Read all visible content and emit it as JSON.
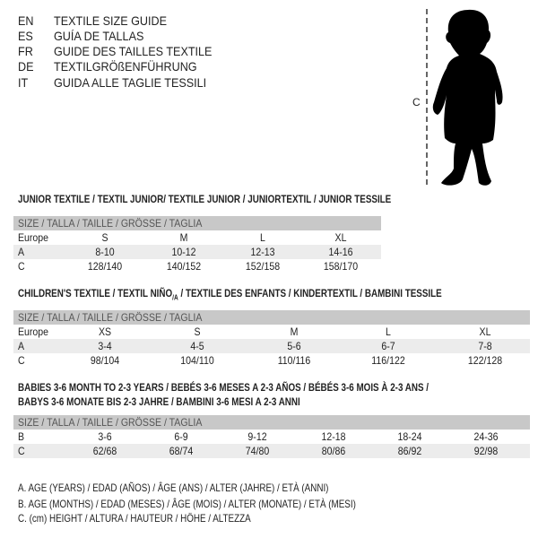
{
  "header": [
    {
      "code": "EN",
      "text": "TEXTILE SIZE GUIDE"
    },
    {
      "code": "ES",
      "text": "GUÍA DE TALLAS"
    },
    {
      "code": "FR",
      "text": "GUIDE DES TAILLES TEXTILE"
    },
    {
      "code": "DE",
      "text": "TEXTILGRÖßENFÜHRUNG"
    },
    {
      "code": "IT",
      "text": "GUIDA ALLE TAGLIE TESSILI"
    }
  ],
  "figure": {
    "measure_label": "C",
    "icon": "child-silhouette"
  },
  "junior": {
    "title": "JUNIOR TEXTILE / TEXTIL JUNIOR/ TEXTILE JUNIOR / JUNIORTEXTIL / JUNIOR TESSILE",
    "size_header": "SIZE / TALLA / TAILLE / GRÖSSE / TAGLIA",
    "rows": [
      {
        "label": "Europe",
        "values": [
          "S",
          "M",
          "L",
          "XL"
        ]
      },
      {
        "label": "A",
        "values": [
          "8-10",
          "10-12",
          "12-13",
          "14-16"
        ]
      },
      {
        "label": "C",
        "values": [
          "128/140",
          "140/152",
          "152/158",
          "158/170"
        ]
      }
    ]
  },
  "children": {
    "title_pre": "CHILDREN'S TEXTILE / TEXTIL NIÑO",
    "title_sub": "/A",
    "title_post": " / TEXTILE DES ENFANTS / KINDERTEXTIL / BAMBINI TESSILE",
    "size_header": "SIZE / TALLA / TAILLE / GRÖSSE / TAGLIA",
    "rows": [
      {
        "label": "Europe",
        "values": [
          "XS",
          "S",
          "M",
          "L",
          "XL"
        ]
      },
      {
        "label": "A",
        "values": [
          "3-4",
          "4-5",
          "5-6",
          "6-7",
          "7-8"
        ]
      },
      {
        "label": "C",
        "values": [
          "98/104",
          "104/110",
          "110/116",
          "116/122",
          "122/128"
        ]
      }
    ]
  },
  "babies": {
    "title_line1": "BABIES 3-6 MONTH TO 2-3 YEARS / BEBÉS 3-6 MESES A 2-3 AÑOS / BÉBÉS 3-6 MOIS À 2-3 ANS /",
    "title_line2": "BABYS 3-6 MONATE BIS 2-3 JAHRE / BAMBINI 3-6 MESI A 2-3 ANNI",
    "size_header": "SIZE / TALLA / TAILLE / GRÖSSE / TAGLIA",
    "rows": [
      {
        "label": "B",
        "values": [
          "3-6",
          "6-9",
          "9-12",
          "12-18",
          "18-24",
          "24-36"
        ]
      },
      {
        "label": "C",
        "values": [
          "62/68",
          "68/74",
          "74/80",
          "80/86",
          "86/92",
          "92/98"
        ]
      }
    ]
  },
  "legend": [
    "A. AGE (YEARS) / EDAD (AÑOS) / ÂGE (ANS) / ALTER (JAHRE) / ETÀ (ANNI)",
    "B. AGE (MONTHS) / EDAD (MESES) / ÂGE (MOIS) / ALTER (MONATE) / ETÀ (MESI)",
    "C. (cm) HEIGHT / ALTURA / HAUTEUR / HÖHE / ALTEZZA"
  ],
  "colors": {
    "header_row": "#c8c8c8",
    "shaded_row": "#ececec",
    "text": "#222222"
  }
}
